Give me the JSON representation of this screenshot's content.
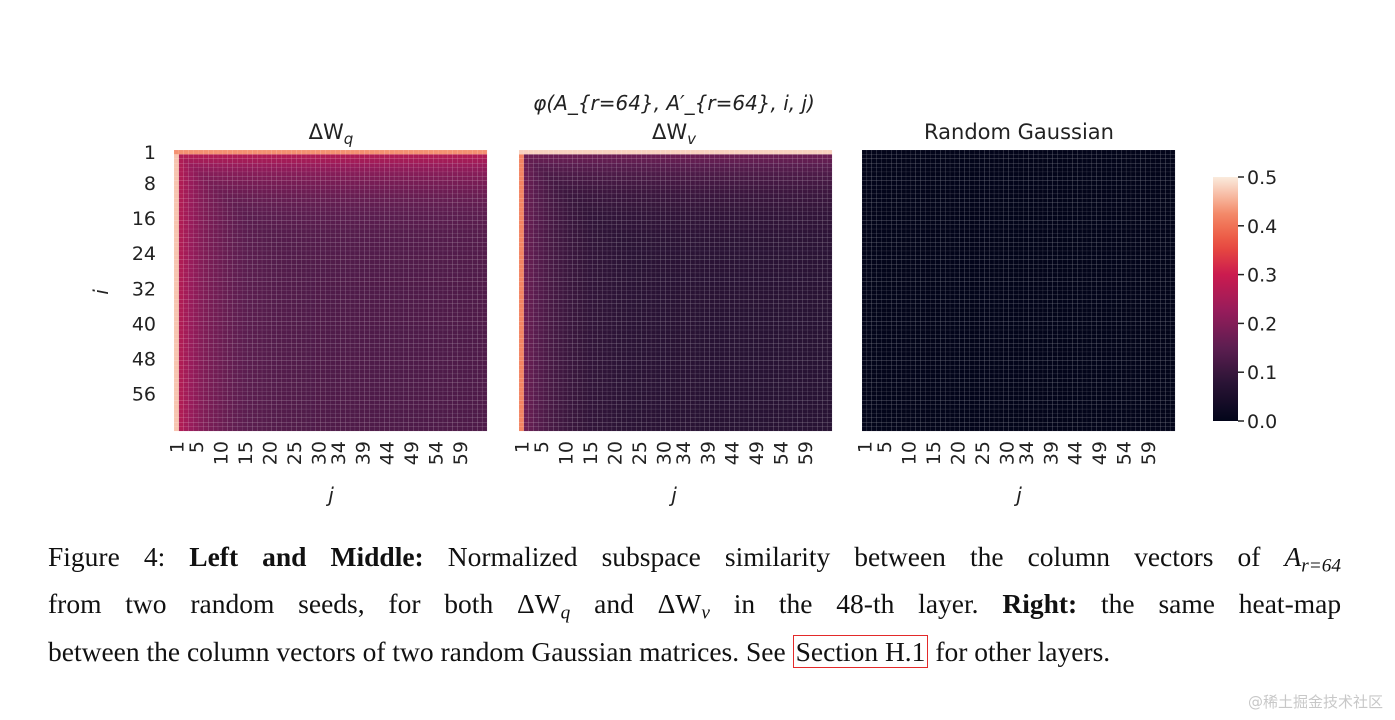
{
  "figure": {
    "suptitle": "φ(A_{r=64}, A′_{r=64}, i, j)",
    "panels": [
      {
        "title_main": "ΔW",
        "title_sub": "q"
      },
      {
        "title_main": "ΔW",
        "title_sub": "v"
      },
      {
        "title_main": "Random Gaussian",
        "title_sub": ""
      }
    ],
    "ylabel": "i",
    "xlabel": "j"
  },
  "chart_data": {
    "type": "heatmap",
    "n": 64,
    "y_ticks": [
      "1",
      "8",
      "16",
      "24",
      "32",
      "40",
      "48",
      "56"
    ],
    "x_ticks": [
      "1",
      "5",
      "10",
      "15",
      "20",
      "25",
      "30",
      "34",
      "39",
      "44",
      "49",
      "54",
      "59"
    ],
    "colorbar": {
      "min": 0.0,
      "max": 0.5,
      "ticks": [
        "0.0",
        "0.1",
        "0.2",
        "0.3",
        "0.4",
        "0.5"
      ],
      "colormap": "rocket"
    },
    "panels": [
      {
        "name": "ΔW_q",
        "first_row": 0.43,
        "first_col": 0.47,
        "near_diag": 0.26,
        "floor": 0.13
      },
      {
        "name": "ΔW_v",
        "first_row": 0.48,
        "first_col": 0.42,
        "near_diag": 0.17,
        "floor": 0.075
      },
      {
        "name": "Random Gaussian",
        "value": 0.0
      }
    ]
  },
  "caption": {
    "label": "Figure 4:",
    "bold1": "Left and Middle:",
    "text1": "Normalized subspace similarity between the column vectors of",
    "sym1_main": "A",
    "sym1_sub": "r=64",
    "text2": "from two random seeds, for both",
    "sym2_main": "ΔW",
    "sym2_sub": "q",
    "text3": "and",
    "sym3_main": "ΔW",
    "sym3_sub": "v",
    "text4": "in the 48-th layer.",
    "bold2": "Right:",
    "text5": "the same heat-map",
    "text6": "between the column vectors of two random Gaussian matrices. See",
    "link": "Section H.1",
    "text7": "for other layers."
  },
  "watermark": "@稀土掘金技术社区"
}
